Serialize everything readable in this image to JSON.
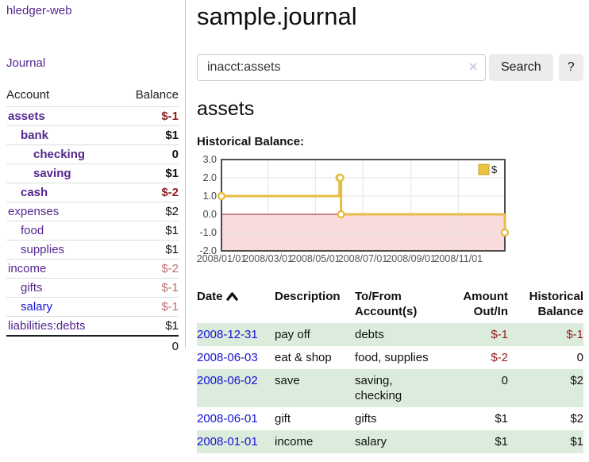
{
  "sidebar": {
    "brand": "hledger-web",
    "journal_link": "Journal",
    "accounts_table": {
      "headers": {
        "account": "Account",
        "balance": "Balance"
      },
      "rows": [
        {
          "name": "assets",
          "depth": 1,
          "bold": true,
          "balance": "$-1",
          "negative": true,
          "faded": false
        },
        {
          "name": "bank",
          "depth": 2,
          "bold": true,
          "balance": "$1",
          "negative": false,
          "faded": false
        },
        {
          "name": "checking",
          "depth": 3,
          "bold": true,
          "balance": "0",
          "negative": false,
          "faded": false
        },
        {
          "name": "saving",
          "depth": 3,
          "bold": true,
          "balance": "$1",
          "negative": false,
          "faded": false
        },
        {
          "name": "cash",
          "depth": 2,
          "bold": true,
          "balance": "$-2",
          "negative": true,
          "faded": false
        },
        {
          "name": "expenses",
          "depth": 1,
          "bold": false,
          "balance": "$2",
          "negative": false,
          "faded": false
        },
        {
          "name": "food",
          "depth": 2,
          "bold": false,
          "balance": "$1",
          "negative": false,
          "faded": false
        },
        {
          "name": "supplies",
          "depth": 2,
          "bold": false,
          "balance": "$1",
          "negative": false,
          "faded": false
        },
        {
          "name": "income",
          "depth": 1,
          "bold": false,
          "balance": "$-2",
          "negative": true,
          "faded": true
        },
        {
          "name": "gifts",
          "depth": 2,
          "bold": false,
          "balance": "$-1",
          "negative": true,
          "faded": true
        },
        {
          "name": "salary",
          "depth": 2,
          "bold": false,
          "balance": "$-1",
          "negative": true,
          "faded": true,
          "unvisited": true
        },
        {
          "name": "liabilities:debts",
          "depth": 1,
          "bold": false,
          "balance": "$1",
          "negative": false,
          "faded": false
        }
      ],
      "total": "0"
    }
  },
  "header": {
    "title": "sample.journal"
  },
  "search": {
    "value": "inacct:assets",
    "clear_icon": "✕",
    "search_label": "Search",
    "help_label": "?"
  },
  "register": {
    "heading": "assets"
  },
  "chart_data": {
    "type": "line",
    "step": true,
    "title": "Historical Balance:",
    "xlabel": "",
    "ylabel": "",
    "xlim": [
      "2008-01-01",
      "2008-12-31"
    ],
    "ylim": [
      -2,
      3
    ],
    "y_ticks": [
      "3.0",
      "2.0",
      "1.0",
      "0.0",
      "-1.0",
      "-2.0"
    ],
    "x_ticks": [
      {
        "label": "2008/01/01",
        "date": "2008-01-01"
      },
      {
        "label": "2008/03/01",
        "date": "2008-03-01"
      },
      {
        "label": "2008/05/01",
        "date": "2008-05-01"
      },
      {
        "label": "2008/07/01",
        "date": "2008-07-01"
      },
      {
        "label": "2008/09/01",
        "date": "2008-09-01"
      },
      {
        "label": "2008/11/01",
        "date": "2008-11-01"
      }
    ],
    "series": [
      {
        "name": "$",
        "color": "#e5bd45",
        "points": [
          {
            "date": "2008-01-01",
            "value": 1
          },
          {
            "date": "2008-06-01",
            "value": 2
          },
          {
            "date": "2008-06-02",
            "value": 2
          },
          {
            "date": "2008-06-03",
            "value": 0
          },
          {
            "date": "2008-12-31",
            "value": -1
          }
        ]
      }
    ],
    "legend": {
      "position": "top-right",
      "label": "$",
      "swatch_color": "#e9c53f",
      "swatch_border": "#c7a12e"
    },
    "grid": true,
    "grid_color": "#e3e3e3",
    "border_color": "#4d4d4d",
    "negative_fill": "#fadbdb",
    "zero_line_color": "#991b1b",
    "marker_fill": "#ffffff"
  },
  "register_table": {
    "headers": [
      {
        "label": "Date"
      },
      {
        "label": "Description"
      },
      {
        "label": "To/From Account(s)"
      },
      {
        "label": "Amount Out/In"
      },
      {
        "label": "Historical Balance"
      }
    ],
    "rows": [
      {
        "date": "2008-12-31",
        "description": "pay off",
        "accounts": "debts",
        "amount": "$-1",
        "amount_neg": true,
        "balance": "$-1",
        "balance_neg": true,
        "shaded": true
      },
      {
        "date": "2008-06-03",
        "description": "eat & shop",
        "accounts": "food, supplies",
        "amount": "$-2",
        "amount_neg": true,
        "balance": "0",
        "balance_neg": false,
        "shaded": false
      },
      {
        "date": "2008-06-02",
        "description": "save",
        "accounts": "saving, checking",
        "amount": "0",
        "amount_neg": false,
        "balance": "$2",
        "balance_neg": false,
        "shaded": true
      },
      {
        "date": "2008-06-01",
        "description": "gift",
        "accounts": "gifts",
        "amount": "$1",
        "amount_neg": false,
        "balance": "$2",
        "balance_neg": false,
        "shaded": false
      },
      {
        "date": "2008-01-01",
        "description": "income",
        "accounts": "salary",
        "amount": "$1",
        "amount_neg": false,
        "balance": "$1",
        "balance_neg": false,
        "shaded": true
      }
    ]
  }
}
